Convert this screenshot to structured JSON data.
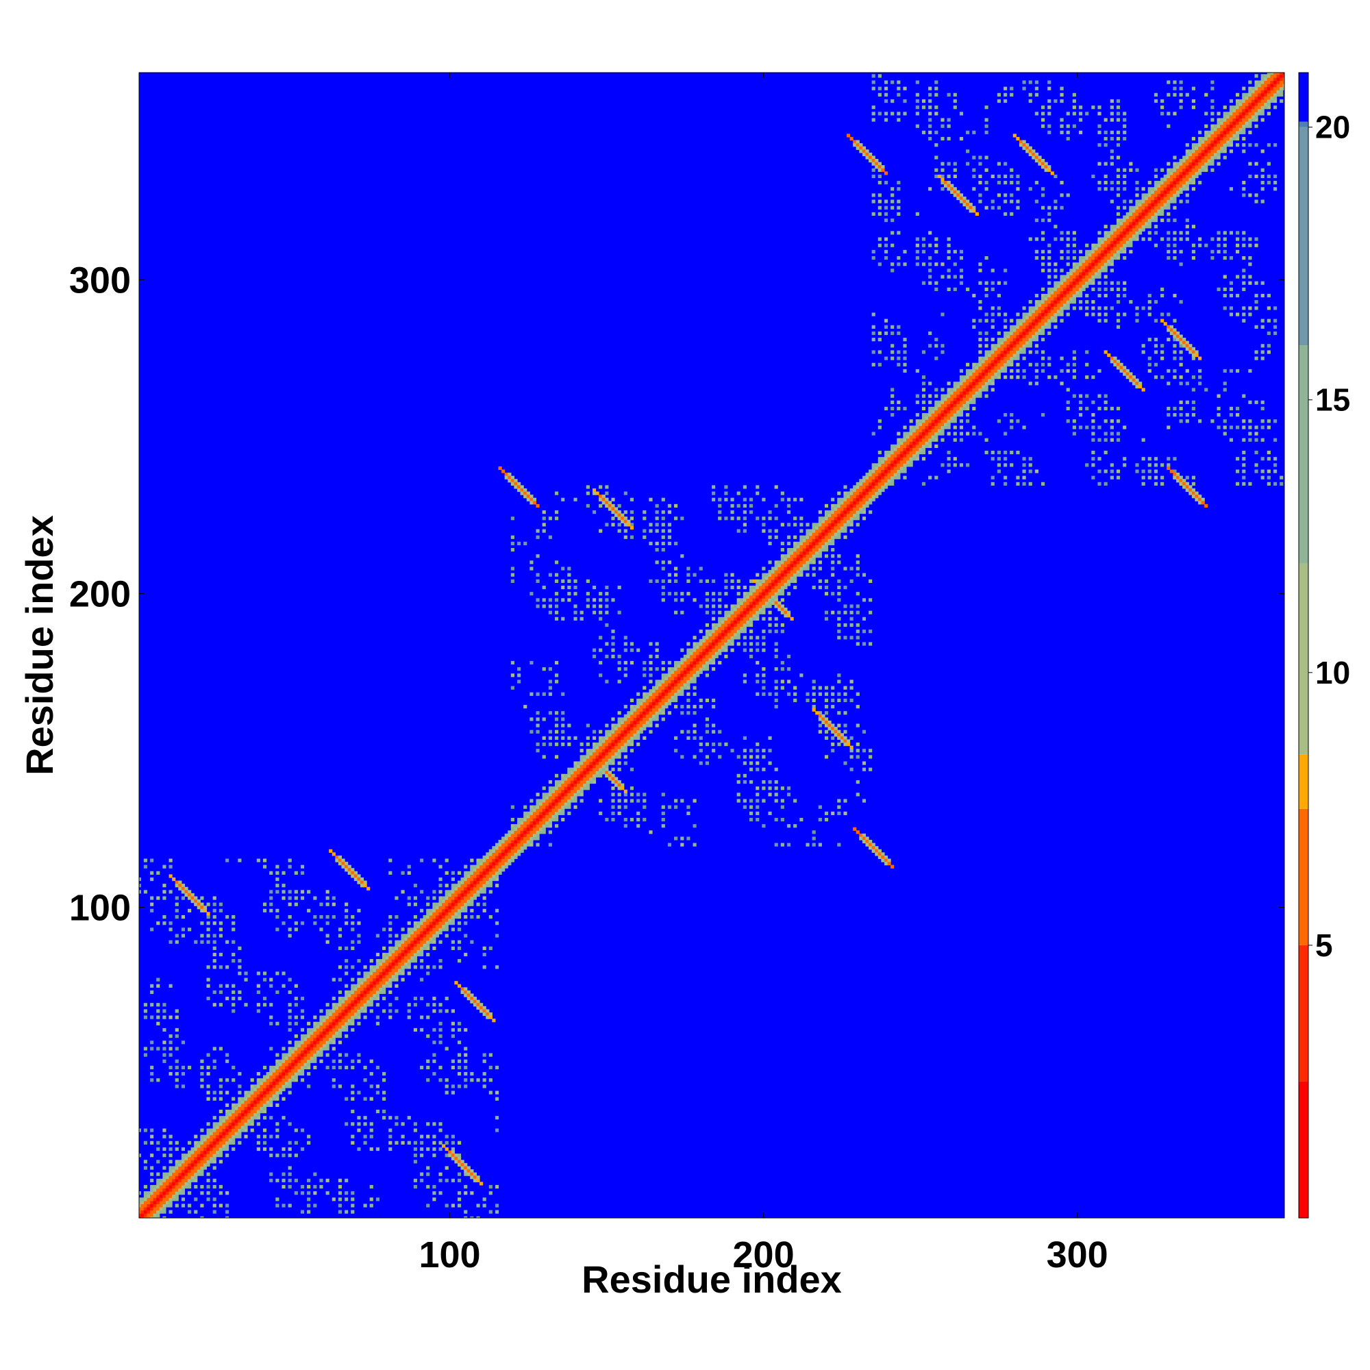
{
  "chart_data": {
    "type": "heatmap",
    "title": "",
    "xlabel": "Residue index",
    "ylabel": "Residue index",
    "xlim": [
      1,
      366
    ],
    "ylim": [
      1,
      366
    ],
    "x_ticks": [
      100,
      200,
      300
    ],
    "y_ticks": [
      100,
      200,
      300
    ],
    "colorbar": {
      "range": [
        0,
        21
      ],
      "ticks": [
        5,
        10,
        15,
        20
      ],
      "saturates_above": 20,
      "colors": [
        {
          "value": 0,
          "color": "#ff0000"
        },
        {
          "value": 2.5,
          "color": "#ff2a00"
        },
        {
          "value": 5,
          "color": "#ff6a00"
        },
        {
          "value": 7.5,
          "color": "#ffaa00"
        },
        {
          "value": 8.5,
          "color": "#a9bd86"
        },
        {
          "value": 12,
          "color": "#8fb596"
        },
        {
          "value": 16,
          "color": "#6f98aa"
        },
        {
          "value": 20,
          "color": "#4f80b4"
        },
        {
          "value": 20.1,
          "color": "#0000ff"
        }
      ]
    },
    "background_color": "#0000ff",
    "grid": false,
    "colormap_note_values": "distance map, values above 20 shown as blue",
    "domains": [
      {
        "start": 1,
        "end": 115
      },
      {
        "start": 120,
        "end": 235
      },
      {
        "start": 235,
        "end": 366
      }
    ],
    "off_diagonal_features": [
      {
        "x": 17,
        "y": 104,
        "value": 6
      },
      {
        "x": 68,
        "y": 112,
        "value": 6
      },
      {
        "x": 108,
        "y": 70,
        "value": 6
      },
      {
        "x": 104,
        "y": 18,
        "value": 6
      },
      {
        "x": 152,
        "y": 227,
        "value": 6
      },
      {
        "x": 150,
        "y": 143,
        "value": 6
      },
      {
        "x": 222,
        "y": 157,
        "value": 6
      },
      {
        "x": 203,
        "y": 198,
        "value": 6
      },
      {
        "x": 262,
        "y": 327,
        "value": 6
      },
      {
        "x": 286,
        "y": 340,
        "value": 6
      },
      {
        "x": 333,
        "y": 281,
        "value": 6
      },
      {
        "x": 315,
        "y": 271,
        "value": 6
      },
      {
        "x": 235,
        "y": 119,
        "value": 5
      },
      {
        "x": 122,
        "y": 234,
        "value": 5
      },
      {
        "x": 233,
        "y": 340,
        "value": 5
      },
      {
        "x": 335,
        "y": 234,
        "value": 5
      }
    ]
  }
}
